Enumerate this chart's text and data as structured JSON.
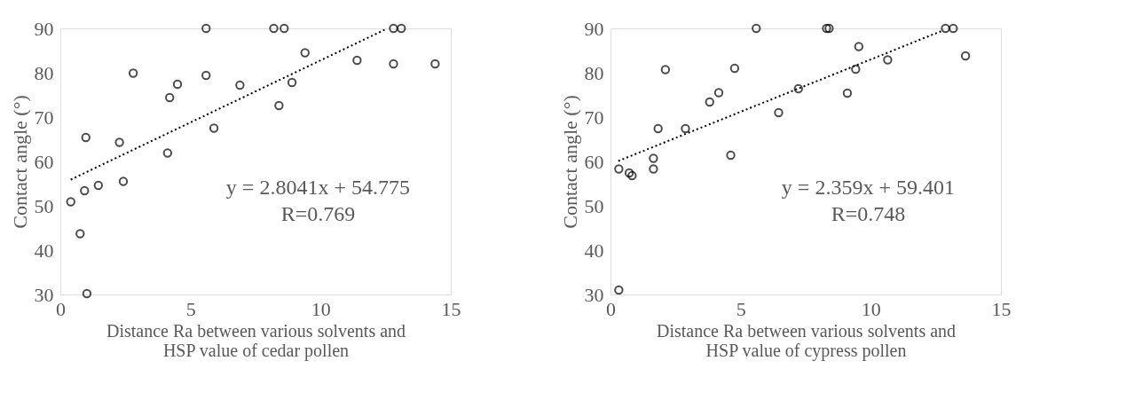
{
  "chart_data": [
    {
      "type": "scatter",
      "xlabel": "Distance Ra between various solvents and\nHSP value of cedar pollen",
      "ylabel": "Contact angle (°)",
      "xlim": [
        0,
        15
      ],
      "ylim": [
        30,
        90
      ],
      "xticks": [
        0,
        5,
        10,
        15
      ],
      "yticks": [
        30,
        40,
        50,
        60,
        70,
        80,
        90
      ],
      "grid": false,
      "marker": "circle",
      "annotations": [
        "y = 2.8041x + 54.775\nR=0.769"
      ],
      "series": [
        {
          "color": "#000000",
          "x": [
            5.6,
            8.2,
            8.6,
            12.8,
            13.1,
            9.4,
            11.4,
            12.8,
            14.4,
            2.8,
            5.6,
            4.5,
            6.9,
            8.9,
            4.2,
            8.4,
            5.9,
            0.98,
            2.27,
            4.12,
            2.42,
            1.46,
            0.93,
            0.4,
            0.76,
            1.02
          ],
          "values": [
            90,
            90,
            90,
            90,
            90,
            84.5,
            82.8,
            82,
            82,
            79.9,
            79.4,
            77.4,
            77.2,
            77.8,
            74.4,
            72.6,
            67.5,
            65.4,
            64.3,
            61.9,
            55.5,
            54.6,
            53.4,
            50.9,
            43.7,
            30.2
          ]
        },
        {
          "type": "line",
          "color": "#000000",
          "line_style": "dotted",
          "marker": "none",
          "x": [
            0.4,
            12.5
          ],
          "values": [
            55.9,
            89.8
          ]
        }
      ]
    },
    {
      "type": "scatter",
      "xlabel": "Distance Ra between various solvents and\nHSP value of cypress pollen",
      "ylabel": "Contact angle (°)",
      "xlim": [
        0,
        15
      ],
      "ylim": [
        30,
        90
      ],
      "xticks": [
        0,
        5,
        10,
        15
      ],
      "yticks": [
        30,
        40,
        50,
        60,
        70,
        80,
        90
      ],
      "grid": false,
      "marker": "circle",
      "annotations": [
        "y = 2.359x + 59.401\nR=0.748"
      ],
      "series": [
        {
          "color": "#000000",
          "x": [
            5.6,
            8.3,
            8.4,
            12.87,
            13.17,
            9.54,
            13.64,
            10.65,
            2.11,
            4.77,
            9.42,
            7.22,
            4.16,
            9.1,
            3.81,
            6.46,
            1.83,
            2.88,
            1.65,
            4.62,
            0.32,
            1.65,
            0.72,
            0.83,
            0.32
          ],
          "values": [
            90,
            90,
            90,
            90,
            90,
            85.9,
            83.8,
            82.9,
            80.7,
            81.0,
            80.8,
            76.4,
            75.5,
            75.4,
            73.4,
            71.0,
            67.4,
            67.4,
            60.7,
            61.4,
            58.3,
            58.3,
            57.4,
            56.8,
            31.0
          ]
        },
        {
          "type": "line",
          "color": "#000000",
          "line_style": "dotted",
          "marker": "none",
          "x": [
            0.3,
            12.8
          ],
          "values": [
            60.1,
            89.6
          ]
        }
      ]
    }
  ]
}
